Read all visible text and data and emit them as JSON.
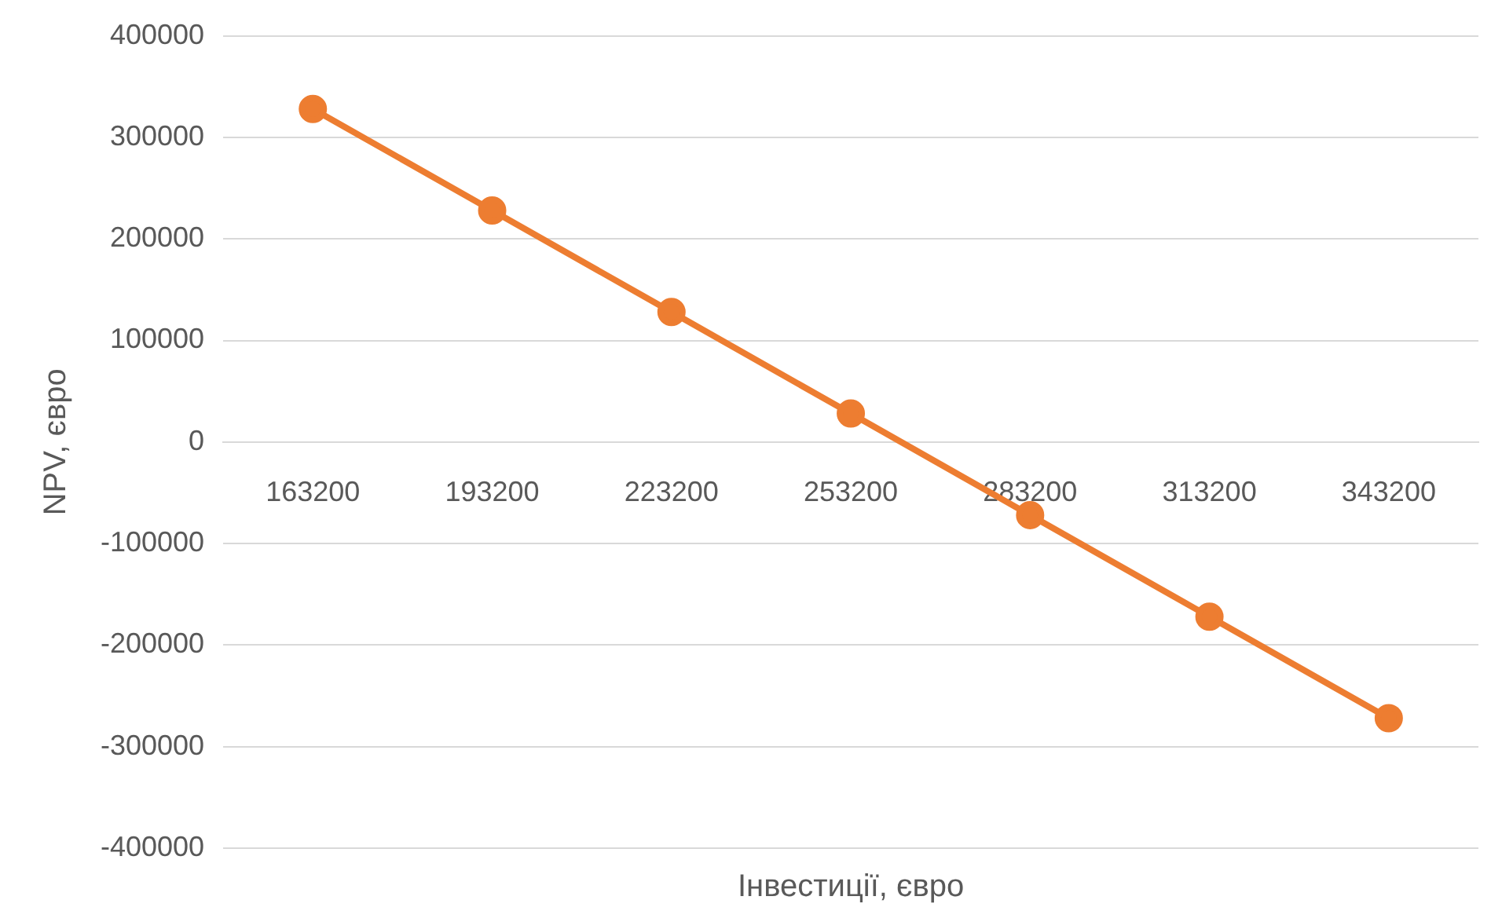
{
  "chart_data": {
    "type": "line",
    "xlabel": "Інвестиції, євро",
    "ylabel": "NPV, євро",
    "categories": [
      "163200",
      "193200",
      "223200",
      "253200",
      "283200",
      "313200",
      "343200"
    ],
    "series": [
      {
        "color": "#ed7d31",
        "values": [
          328000,
          228000,
          128000,
          28000,
          -72000,
          -172000,
          -272000
        ]
      }
    ],
    "ylim": [
      -400000,
      400000
    ],
    "yticks": [
      -400000,
      -300000,
      -200000,
      -100000,
      0,
      100000,
      200000,
      300000,
      400000
    ],
    "grid": "y",
    "legend": false,
    "marker": "circle",
    "line_style": "solid"
  }
}
